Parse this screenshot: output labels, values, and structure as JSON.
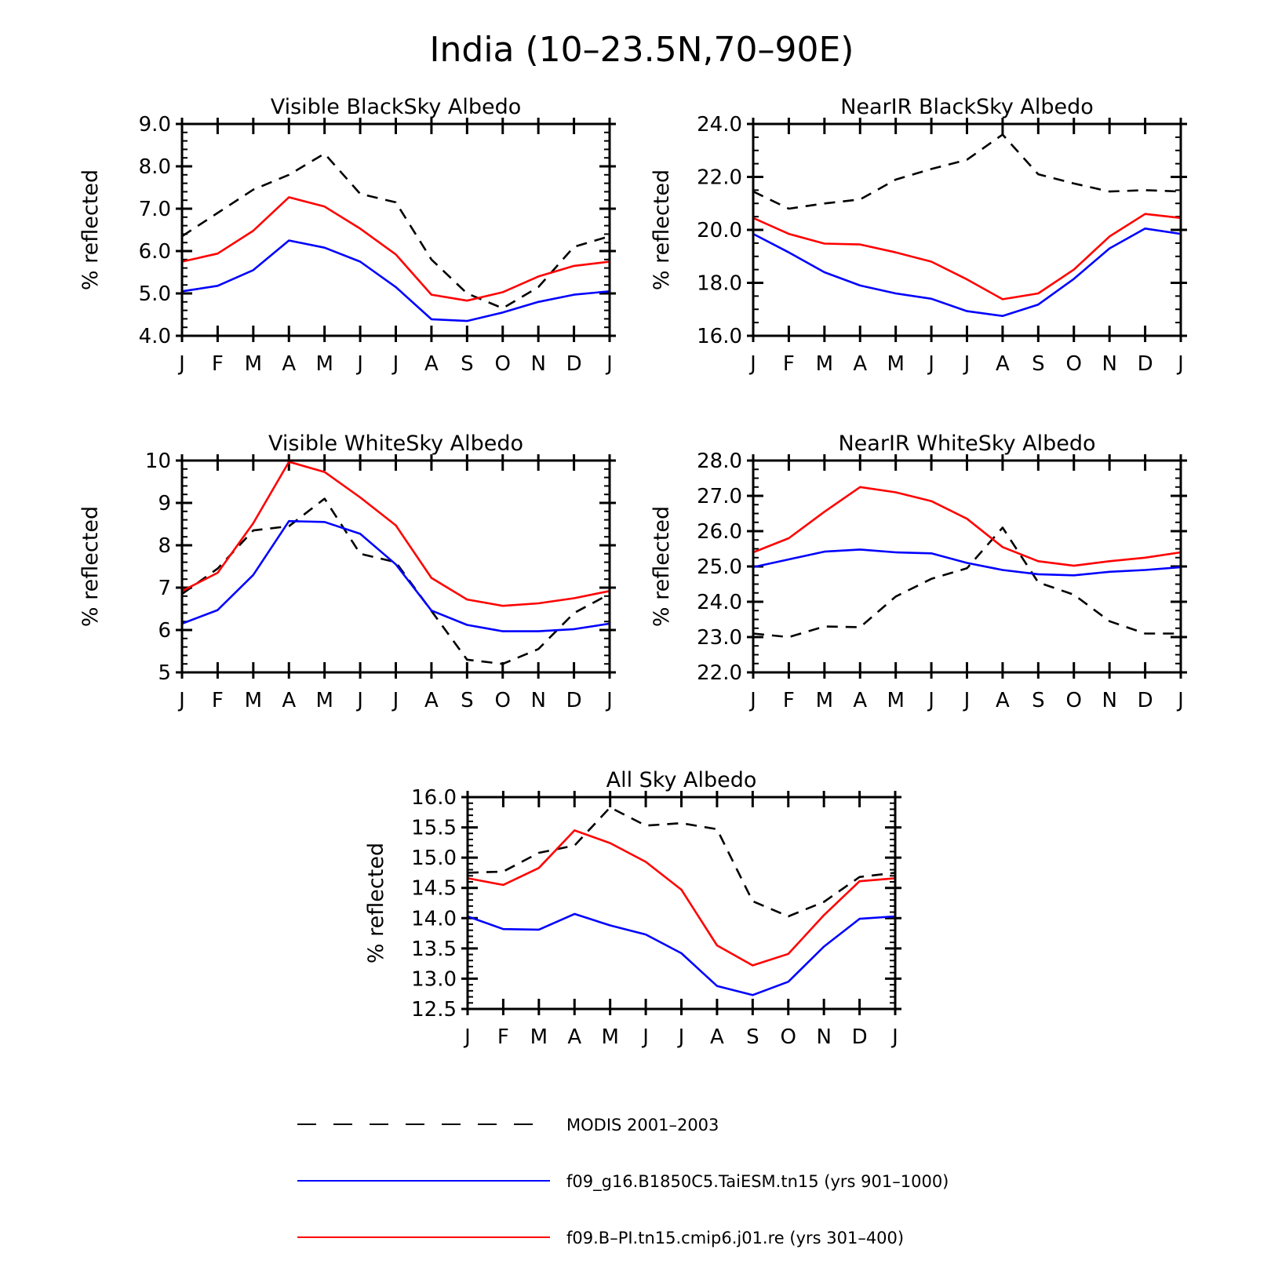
{
  "figure": {
    "title": "India (10–23.5N,70–90E)"
  },
  "months": [
    "J",
    "F",
    "M",
    "A",
    "M",
    "J",
    "J",
    "A",
    "S",
    "O",
    "N",
    "D",
    "J"
  ],
  "colors": {
    "modis": "#000000",
    "taiesm": "#0000ff",
    "cmip6": "#ff0000"
  },
  "legend": [
    {
      "label": "MODIS 2001–2003",
      "color": "#000000",
      "dashed": true
    },
    {
      "label": "f09_g16.B1850C5.TaiESM.tn15 (yrs 901–1000)",
      "color": "#0000ff",
      "dashed": false
    },
    {
      "label": "f09.B–PI.tn15.cmip6.j01.re (yrs 301–400)",
      "color": "#ff0000",
      "dashed": false
    }
  ],
  "chart_data": [
    {
      "type": "line",
      "title": "Visible BlackSky Albedo",
      "ylabel": "% reflected",
      "ylim": [
        4.0,
        9.0
      ],
      "yticks": [
        4.0,
        5.0,
        6.0,
        7.0,
        8.0,
        9.0
      ],
      "ytick_labels": [
        "4.0",
        "5.0",
        "6.0",
        "7.0",
        "8.0",
        "9.0"
      ],
      "minor_step": 0.2,
      "series": [
        {
          "name": "MODIS 2001–2003",
          "values": [
            6.35,
            6.9,
            7.45,
            7.8,
            8.3,
            7.35,
            7.15,
            5.8,
            5.0,
            4.65,
            5.15,
            6.1,
            6.35
          ]
        },
        {
          "name": "f09_g16.B1850C5.TaiESM.tn15 (yrs 901–1000)",
          "values": [
            5.05,
            5.18,
            5.55,
            6.25,
            6.08,
            5.75,
            5.15,
            4.39,
            4.35,
            4.55,
            4.8,
            4.97,
            5.05
          ]
        },
        {
          "name": "f09.B–PI.tn15.cmip6.j01.re (yrs 301–400)",
          "values": [
            5.75,
            5.94,
            6.48,
            7.27,
            7.05,
            6.53,
            5.92,
            4.97,
            4.83,
            5.03,
            5.4,
            5.65,
            5.75
          ]
        }
      ]
    },
    {
      "type": "line",
      "title": "NearIR BlackSky Albedo",
      "ylabel": "% reflected",
      "ylim": [
        16.0,
        24.0
      ],
      "yticks": [
        16.0,
        18.0,
        20.0,
        22.0,
        24.0
      ],
      "ytick_labels": [
        "16.0",
        "18.0",
        "20.0",
        "22.0",
        "24.0"
      ],
      "minor_step": 0.5,
      "series": [
        {
          "name": "MODIS 2001–2003",
          "values": [
            21.45,
            20.8,
            21.0,
            21.15,
            21.9,
            22.3,
            22.65,
            23.6,
            22.1,
            21.75,
            21.45,
            21.5,
            21.45
          ]
        },
        {
          "name": "f09_g16.B1850C5.TaiESM.tn15 (yrs 901–1000)",
          "values": [
            19.85,
            19.15,
            18.4,
            17.9,
            17.6,
            17.4,
            16.93,
            16.75,
            17.18,
            18.15,
            19.3,
            20.05,
            19.85
          ]
        },
        {
          "name": "f09.B–PI.tn15.cmip6.j01.re (yrs 301–400)",
          "values": [
            20.45,
            19.85,
            19.48,
            19.45,
            19.15,
            18.8,
            18.13,
            17.38,
            17.6,
            18.5,
            19.75,
            20.6,
            20.45
          ]
        }
      ]
    },
    {
      "type": "line",
      "title": "Visible WhiteSky Albedo",
      "ylabel": "% reflected",
      "ylim": [
        5,
        10
      ],
      "yticks": [
        5,
        6,
        7,
        8,
        9,
        10
      ],
      "ytick_labels": [
        "5",
        "6",
        "7",
        "8",
        "9",
        "10"
      ],
      "minor_step": 0.2,
      "series": [
        {
          "name": "MODIS 2001–2003",
          "values": [
            6.85,
            7.45,
            8.35,
            8.45,
            9.1,
            7.8,
            7.6,
            6.45,
            5.3,
            5.2,
            5.55,
            6.4,
            6.85
          ]
        },
        {
          "name": "f09_g16.B1850C5.TaiESM.tn15 (yrs 901–1000)",
          "values": [
            6.15,
            6.47,
            7.3,
            8.57,
            8.55,
            8.27,
            7.55,
            6.46,
            6.12,
            5.97,
            5.97,
            6.02,
            6.15
          ]
        },
        {
          "name": "f09.B–PI.tn15.cmip6.j01.re (yrs 301–400)",
          "values": [
            6.92,
            7.35,
            8.52,
            9.97,
            9.73,
            9.13,
            8.47,
            7.23,
            6.72,
            6.57,
            6.63,
            6.75,
            6.92
          ]
        }
      ]
    },
    {
      "type": "line",
      "title": "NearIR WhiteSky Albedo",
      "ylabel": "% reflected",
      "ylim": [
        22.0,
        28.0
      ],
      "yticks": [
        22.0,
        23.0,
        24.0,
        25.0,
        26.0,
        27.0,
        28.0
      ],
      "ytick_labels": [
        "22.0",
        "23.0",
        "24.0",
        "25.0",
        "26.0",
        "27.0",
        "28.0"
      ],
      "minor_step": 0.25,
      "series": [
        {
          "name": "MODIS 2001–2003",
          "values": [
            23.1,
            23.0,
            23.3,
            23.28,
            24.15,
            24.65,
            24.95,
            26.1,
            24.55,
            24.2,
            23.45,
            23.1,
            23.1
          ]
        },
        {
          "name": "f09_g16.B1850C5.TaiESM.tn15 (yrs 901–1000)",
          "values": [
            24.98,
            25.2,
            25.42,
            25.48,
            25.4,
            25.37,
            25.1,
            24.9,
            24.78,
            24.75,
            24.85,
            24.9,
            24.98
          ]
        },
        {
          "name": "f09.B–PI.tn15.cmip6.j01.re (yrs 301–400)",
          "values": [
            25.4,
            25.8,
            26.55,
            27.25,
            27.1,
            26.85,
            26.35,
            25.55,
            25.15,
            25.02,
            25.15,
            25.25,
            25.4
          ]
        }
      ]
    },
    {
      "type": "line",
      "title": "All Sky Albedo",
      "ylabel": "% reflected",
      "ylim": [
        12.5,
        16.0
      ],
      "yticks": [
        12.5,
        13.0,
        13.5,
        14.0,
        14.5,
        15.0,
        15.5,
        16.0
      ],
      "ytick_labels": [
        "12.5",
        "13.0",
        "13.5",
        "14.0",
        "14.5",
        "15.0",
        "15.5",
        "16.0"
      ],
      "minor_step": 0.1,
      "series": [
        {
          "name": "MODIS 2001–2003",
          "values": [
            14.75,
            14.77,
            15.08,
            15.2,
            15.83,
            15.53,
            15.57,
            15.47,
            14.28,
            14.03,
            14.27,
            14.68,
            14.75
          ]
        },
        {
          "name": "f09_g16.B1850C5.TaiESM.tn15 (yrs 901–1000)",
          "values": [
            14.03,
            13.82,
            13.81,
            14.07,
            13.88,
            13.73,
            13.42,
            12.88,
            12.73,
            12.95,
            13.53,
            13.99,
            14.03
          ]
        },
        {
          "name": "f09.B–PI.tn15.cmip6.j01.re (yrs 301–400)",
          "values": [
            14.66,
            14.55,
            14.83,
            15.45,
            15.24,
            14.93,
            14.47,
            13.55,
            13.22,
            13.41,
            14.05,
            14.61,
            14.66
          ]
        }
      ]
    }
  ]
}
